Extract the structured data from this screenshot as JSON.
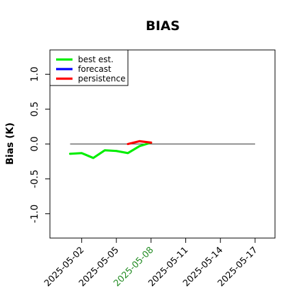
{
  "chart_data": {
    "type": "line",
    "title": "BIAS",
    "ylabel": "Bias (K)",
    "xlabel": "",
    "ylim": [
      -1.35,
      1.35
    ],
    "xlim": [
      "2025-04-30",
      "2025-05-18"
    ],
    "yticks": [
      -1.0,
      -0.5,
      0.0,
      0.5,
      1.0
    ],
    "ytick_labels": [
      "-1.0",
      "-0.5",
      "0.0",
      "0.5",
      "1.0"
    ],
    "xticks": [
      "2025-05-02",
      "2025-05-05",
      "2025-05-08",
      "2025-05-11",
      "2025-05-14",
      "2025-05-17"
    ],
    "highlight_xtick": "2025-05-08",
    "highlight_color": "#228B22",
    "reference_line": {
      "y": 0.0,
      "x_start": "2025-05-01",
      "x_end": "2025-05-17",
      "color": "#555555"
    },
    "legend_position": "top-left",
    "grid": false,
    "series": [
      {
        "name": "best est.",
        "color": "#00ee00",
        "x": [
          "2025-05-01",
          "2025-05-02",
          "2025-05-03",
          "2025-05-04",
          "2025-05-05",
          "2025-05-06",
          "2025-05-07",
          "2025-05-08"
        ],
        "y": [
          -0.14,
          -0.13,
          -0.2,
          -0.09,
          -0.1,
          -0.13,
          -0.03,
          0.02
        ]
      },
      {
        "name": "forecast",
        "color": "#0000ff",
        "x": [],
        "y": []
      },
      {
        "name": "persistence",
        "color": "#ff0000",
        "x": [
          "2025-05-06",
          "2025-05-07",
          "2025-05-08"
        ],
        "y": [
          0.0,
          0.04,
          0.02
        ]
      }
    ]
  }
}
